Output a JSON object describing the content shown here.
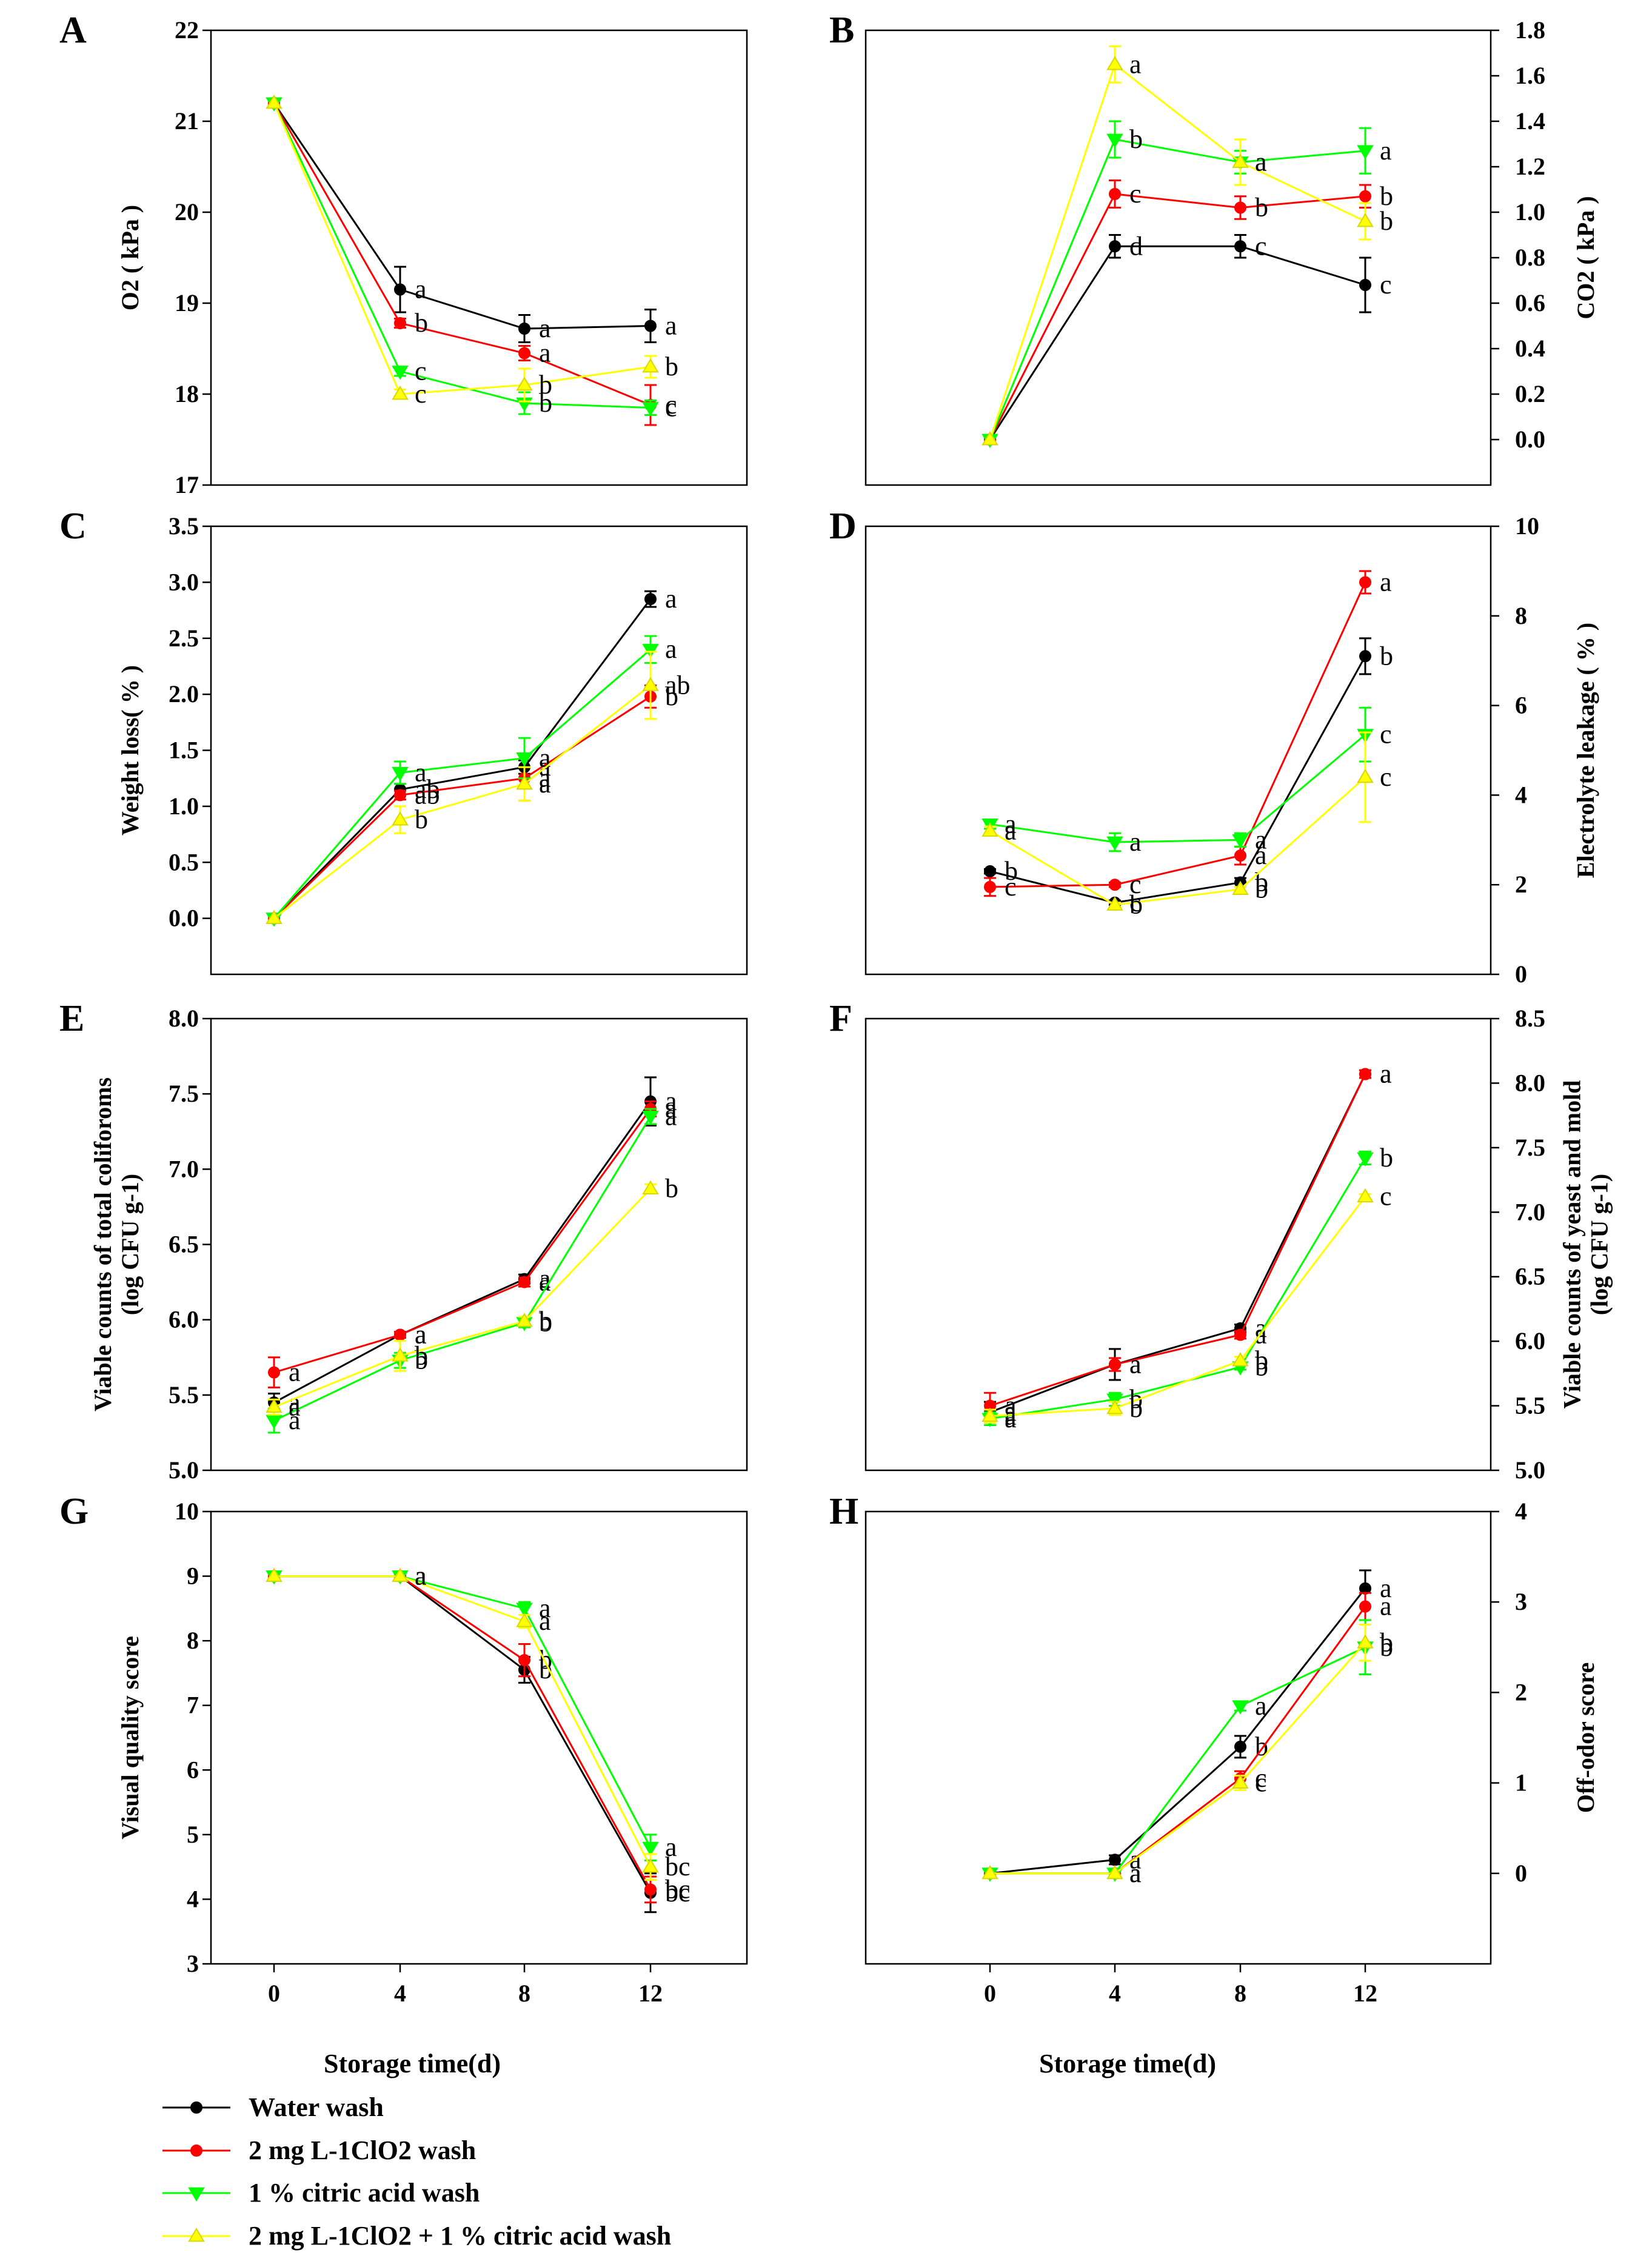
{
  "figure": {
    "xlabel": "Storage time(d)",
    "legend": [
      {
        "label": "Water wash",
        "color": "#000000",
        "marker": "circle"
      },
      {
        "label": "2 mg L-1ClO2 wash",
        "color": "#ff0000",
        "marker": "circle"
      },
      {
        "label": "1 % citric acid wash",
        "color": "#00ff00",
        "marker": "triangle-down"
      },
      {
        "label": "2 mg L-1ClO2 + 1 % citric acid wash",
        "color": "#ffff00",
        "marker": "triangle-up"
      }
    ]
  },
  "chart_data": [
    {
      "id": "A",
      "type": "line",
      "ylabel": "O2 ( kPa )",
      "ylim": [
        17,
        22
      ],
      "yticks": [
        17,
        18,
        19,
        20,
        21,
        22
      ],
      "x": [
        0,
        4,
        8,
        12
      ],
      "yaxis_side": "left",
      "series": [
        {
          "name": "Water wash",
          "values": [
            21.2,
            19.15,
            18.72,
            18.75
          ],
          "err": [
            0,
            0.25,
            0.15,
            0.18
          ],
          "letters": [
            "",
            "a",
            "a",
            "a"
          ]
        },
        {
          "name": "2 mg L-1ClO2 wash",
          "values": [
            21.2,
            18.78,
            18.45,
            17.88
          ],
          "err": [
            0,
            0.05,
            0.08,
            0.22
          ],
          "letters": [
            "",
            "b",
            "a",
            "c"
          ]
        },
        {
          "name": "1 % citric acid wash",
          "values": [
            21.2,
            18.25,
            17.9,
            17.85
          ],
          "err": [
            0,
            0.05,
            0.12,
            0.08
          ],
          "letters": [
            "",
            "c",
            "b",
            "c"
          ]
        },
        {
          "name": "2 mg L-1ClO2 + 1 % citric acid wash",
          "values": [
            21.2,
            18.0,
            18.1,
            18.3
          ],
          "err": [
            0,
            0.05,
            0.18,
            0.12
          ],
          "letters": [
            "",
            "c",
            "b",
            "b"
          ]
        }
      ]
    },
    {
      "id": "B",
      "type": "line",
      "ylabel": "CO2 ( kPa )",
      "ylim": [
        -0.2,
        1.8
      ],
      "yticks": [
        0.0,
        0.2,
        0.4,
        0.6,
        0.8,
        1.0,
        1.2,
        1.4,
        1.6,
        1.8
      ],
      "x": [
        0,
        4,
        8,
        12
      ],
      "yaxis_side": "right",
      "series": [
        {
          "name": "Water wash",
          "values": [
            0.0,
            0.85,
            0.85,
            0.68
          ],
          "err": [
            0,
            0.05,
            0.05,
            0.12
          ],
          "letters": [
            "",
            "d",
            "c",
            "c"
          ]
        },
        {
          "name": "2 mg L-1ClO2 wash",
          "values": [
            0.0,
            1.08,
            1.02,
            1.07
          ],
          "err": [
            0,
            0.06,
            0.05,
            0.05
          ],
          "letters": [
            "",
            "c",
            "b",
            "b"
          ]
        },
        {
          "name": "1 % citric acid wash",
          "values": [
            0.0,
            1.32,
            1.22,
            1.27
          ],
          "err": [
            0,
            0.08,
            0.05,
            0.1
          ],
          "letters": [
            "",
            "b",
            "a",
            "a"
          ]
        },
        {
          "name": "2 mg L-1ClO2 + 1 % citric acid wash",
          "values": [
            0.0,
            1.65,
            1.22,
            0.96
          ],
          "err": [
            0,
            0.08,
            0.1,
            0.08
          ],
          "letters": [
            "",
            "a",
            "a",
            "b"
          ]
        }
      ]
    },
    {
      "id": "C",
      "type": "line",
      "ylabel": "Weight loss( % )",
      "ylim": [
        -0.5,
        3.5
      ],
      "yticks": [
        0.0,
        0.5,
        1.0,
        1.5,
        2.0,
        2.5,
        3.0,
        3.5
      ],
      "x": [
        0,
        4,
        8,
        12
      ],
      "yaxis_side": "left",
      "series": [
        {
          "name": "Water wash",
          "values": [
            0.0,
            1.15,
            1.35,
            2.85
          ],
          "err": [
            0,
            0.05,
            0.06,
            0.07
          ],
          "letters": [
            "",
            "ab",
            "a",
            "a"
          ]
        },
        {
          "name": "2 mg L-1ClO2 wash",
          "values": [
            0.0,
            1.1,
            1.25,
            1.98
          ],
          "err": [
            0,
            0.04,
            0.2,
            0.1
          ],
          "letters": [
            "",
            "ab",
            "a",
            "b"
          ]
        },
        {
          "name": "1 % citric acid wash",
          "values": [
            0.0,
            1.3,
            1.43,
            2.4
          ],
          "err": [
            0,
            0.1,
            0.18,
            0.12
          ],
          "letters": [
            "",
            "a",
            "a",
            "a"
          ]
        },
        {
          "name": "2 mg L-1ClO2 + 1 % citric acid wash",
          "values": [
            0.0,
            0.88,
            1.2,
            2.08
          ],
          "err": [
            0,
            0.12,
            0.15,
            0.3
          ],
          "letters": [
            "",
            "b",
            "a",
            "ab"
          ]
        }
      ]
    },
    {
      "id": "D",
      "type": "line",
      "ylabel": "Electrolyte leakage ( % )",
      "ylim": [
        0,
        10
      ],
      "yticks": [
        0,
        2,
        4,
        6,
        8,
        10
      ],
      "x": [
        0,
        4,
        8,
        12
      ],
      "yaxis_side": "right",
      "series": [
        {
          "name": "Water wash",
          "values": [
            2.3,
            1.6,
            2.05,
            7.1
          ],
          "err": [
            0.05,
            0.05,
            0.1,
            0.4
          ],
          "letters": [
            "b",
            "c",
            "b",
            "b"
          ]
        },
        {
          "name": "2 mg L-1ClO2 wash",
          "values": [
            1.95,
            2.0,
            2.65,
            8.75
          ],
          "err": [
            0.2,
            0.05,
            0.2,
            0.25
          ],
          "letters": [
            "c",
            "c",
            "a",
            "a"
          ]
        },
        {
          "name": "1 % citric acid wash",
          "values": [
            3.35,
            2.95,
            3.0,
            5.35
          ],
          "err": [
            0.1,
            0.2,
            0.15,
            0.6
          ],
          "letters": [
            "a",
            "a",
            "a",
            "c"
          ]
        },
        {
          "name": "2 mg L-1ClO2 + 1 % citric acid wash",
          "values": [
            3.2,
            1.55,
            1.9,
            4.4
          ],
          "err": [
            0.1,
            0.05,
            0.05,
            1.0
          ],
          "letters": [
            "a",
            "b",
            "b",
            "c"
          ]
        }
      ]
    },
    {
      "id": "E",
      "type": "line",
      "ylabel_line1": "Viable counts of total coliforoms",
      "ylabel_line2": "(log CFU g-1)",
      "ylim": [
        5.0,
        8.0
      ],
      "yticks": [
        5.0,
        5.5,
        6.0,
        6.5,
        7.0,
        7.5,
        8.0
      ],
      "x": [
        0,
        4,
        8,
        12
      ],
      "yaxis_side": "left",
      "series": [
        {
          "name": "Water wash",
          "values": [
            5.45,
            5.9,
            6.27,
            7.45
          ],
          "err": [
            0.06,
            0.02,
            0.03,
            0.16
          ],
          "letters": [
            "a",
            "a",
            "a",
            "a"
          ]
        },
        {
          "name": "2 mg L-1ClO2 wash",
          "values": [
            5.65,
            5.9,
            6.25,
            7.4
          ],
          "err": [
            0.1,
            0.02,
            0.03,
            0.05
          ],
          "letters": [
            "a",
            "a",
            "a",
            "a"
          ]
        },
        {
          "name": "1 % citric acid wash",
          "values": [
            5.33,
            5.73,
            5.98,
            7.35
          ],
          "err": [
            0.08,
            0.05,
            0.03,
            0.05
          ],
          "letters": [
            "a",
            "b",
            "b",
            "a"
          ]
        },
        {
          "name": "2 mg L-1ClO2 + 1 % citric acid wash",
          "values": [
            5.42,
            5.76,
            5.99,
            6.87
          ],
          "err": [
            0.05,
            0.1,
            0.03,
            0.03
          ],
          "letters": [
            "a",
            "b",
            "b",
            "b"
          ]
        }
      ]
    },
    {
      "id": "F",
      "type": "line",
      "ylabel_line1": "Viable counts of yeast and mold",
      "ylabel_line2": "(log CFU g-1)",
      "ylim": [
        5.0,
        8.5
      ],
      "yticks": [
        5.0,
        5.5,
        6.0,
        6.5,
        7.0,
        7.5,
        8.0,
        8.5
      ],
      "x": [
        0,
        4,
        8,
        12
      ],
      "yaxis_side": "right",
      "series": [
        {
          "name": "Water wash",
          "values": [
            5.45,
            5.82,
            6.1,
            8.07
          ],
          "err": [
            0.08,
            0.12,
            0.03,
            0.03
          ],
          "letters": [
            "a",
            "a",
            "a",
            "a"
          ]
        },
        {
          "name": "2 mg L-1ClO2 wash",
          "values": [
            5.5,
            5.82,
            6.05,
            8.07
          ],
          "err": [
            0.1,
            0.05,
            0.03,
            0.03
          ],
          "letters": [
            "a",
            "a",
            "a",
            "a"
          ]
        },
        {
          "name": "1 % citric acid wash",
          "values": [
            5.4,
            5.55,
            5.8,
            7.42
          ],
          "err": [
            0.05,
            0.05,
            0.02,
            0.05
          ],
          "letters": [
            "a",
            "b",
            "b",
            "b"
          ]
        },
        {
          "name": "2 mg L-1ClO2 + 1 % citric acid wash",
          "values": [
            5.42,
            5.48,
            5.85,
            7.12
          ],
          "err": [
            0.05,
            0.05,
            0.03,
            0.02
          ],
          "letters": [
            "a",
            "b",
            "b",
            "c"
          ]
        }
      ]
    },
    {
      "id": "G",
      "type": "line",
      "ylabel": "Visual quality score",
      "ylim": [
        3,
        10
      ],
      "yticks": [
        3,
        4,
        5,
        6,
        7,
        8,
        9,
        10
      ],
      "x": [
        0,
        4,
        8,
        12
      ],
      "yaxis_side": "left",
      "series": [
        {
          "name": "Water wash",
          "values": [
            9,
            9,
            7.55,
            4.1
          ],
          "err": [
            0,
            0,
            0.2,
            0.3
          ],
          "letters": [
            "",
            "a",
            "b",
            "bc"
          ]
        },
        {
          "name": "2 mg L-1ClO2 wash",
          "values": [
            9,
            9,
            7.7,
            4.15
          ],
          "err": [
            0,
            0,
            0.25,
            0.2
          ],
          "letters": [
            "",
            "a",
            "b",
            "bc"
          ]
        },
        {
          "name": "1 % citric acid wash",
          "values": [
            9,
            9,
            8.5,
            4.8
          ],
          "err": [
            0,
            0,
            0.1,
            0.2
          ],
          "letters": [
            "",
            "a",
            "a",
            "a"
          ]
        },
        {
          "name": "2 mg L-1ClO2 + 1 % citric acid wash",
          "values": [
            9,
            9,
            8.3,
            4.5
          ],
          "err": [
            0,
            0,
            0.1,
            0.2
          ],
          "letters": [
            "",
            "a",
            "a",
            "bc"
          ]
        }
      ]
    },
    {
      "id": "H",
      "type": "line",
      "ylabel": "Off-odor score",
      "ylim": [
        -1,
        4
      ],
      "yticks": [
        0,
        1,
        2,
        3,
        4
      ],
      "x": [
        0,
        4,
        8,
        12
      ],
      "yaxis_side": "right",
      "series": [
        {
          "name": "Water wash",
          "values": [
            0,
            0.15,
            1.4,
            3.15
          ],
          "err": [
            0,
            0.05,
            0.12,
            0.2
          ],
          "letters": [
            "",
            "a",
            "b",
            "a"
          ]
        },
        {
          "name": "2 mg L-1ClO2 wash",
          "values": [
            0,
            0.0,
            1.05,
            2.95
          ],
          "err": [
            0,
            0,
            0.08,
            0.15
          ],
          "letters": [
            "",
            "a",
            "c",
            "a"
          ]
        },
        {
          "name": "1 % citric acid wash",
          "values": [
            0,
            0.0,
            1.85,
            2.5
          ],
          "err": [
            0,
            0,
            0.05,
            0.3
          ],
          "letters": [
            "",
            "a",
            "a",
            "b"
          ]
        },
        {
          "name": "2 mg L-1ClO2 + 1 % citric acid wash",
          "values": [
            0,
            0.0,
            1.0,
            2.55
          ],
          "err": [
            0,
            0,
            0.08,
            0.2
          ],
          "letters": [
            "",
            "a",
            "c",
            "b"
          ]
        }
      ]
    }
  ]
}
